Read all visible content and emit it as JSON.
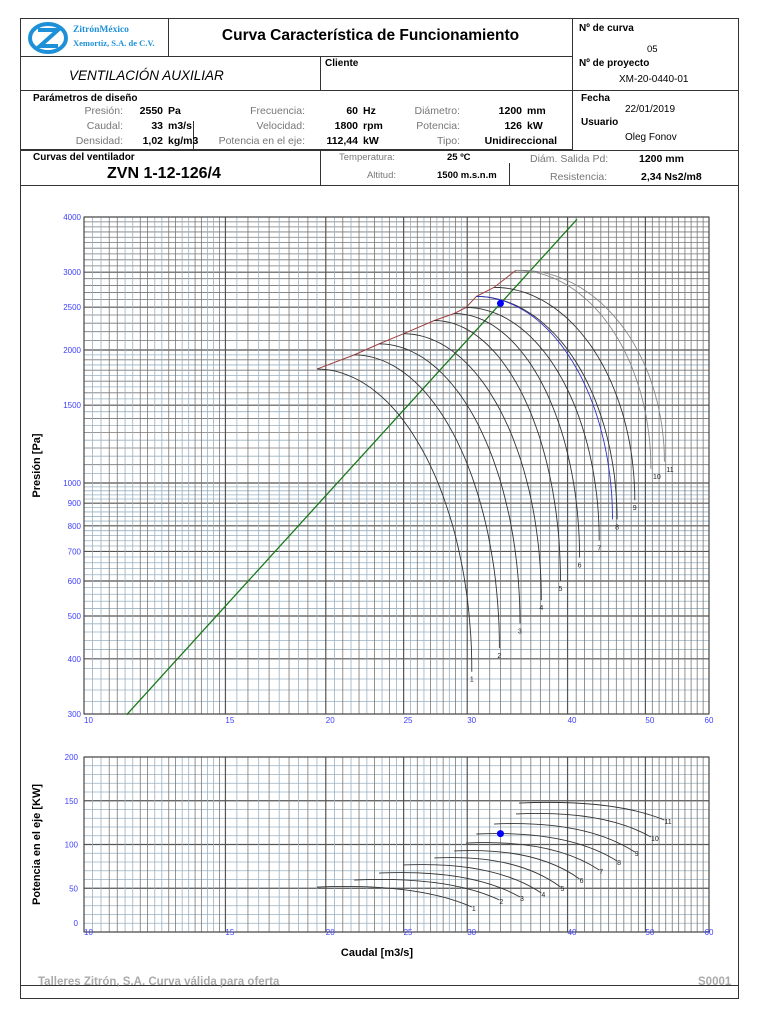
{
  "header": {
    "logo": {
      "line1": "ZitrónMéxico",
      "line2": "Xemortiz, S.A. de C.V.",
      "color": "#1e90d8"
    },
    "title": "Curva Característica de Funcionamiento",
    "application": "VENTILACIÓN AUXILIAR",
    "cliente_label": "Cliente",
    "curve_no_label": "Nº de curva",
    "curve_no": "05",
    "project_label": "Nº de proyecto",
    "project": "XM-20-0440-01",
    "fecha_label": "Fecha",
    "fecha": "22/01/2019",
    "usuario_label": "Usuario",
    "usuario": "Oleg Fonov"
  },
  "params": {
    "title": "Parámetros de diseño",
    "rows": [
      {
        "label": "Presión:",
        "value": "2550",
        "unit": "Pa"
      },
      {
        "label": "Caudal:",
        "value": "33",
        "unit": "m3/s"
      },
      {
        "label": "Densidad:",
        "value": "1,02",
        "unit": "kg/m3"
      },
      {
        "label": "Frecuencia:",
        "value": "60",
        "unit": "Hz"
      },
      {
        "label": "Velocidad:",
        "value": "1800",
        "unit": "rpm"
      },
      {
        "label": "Potencia en el eje:",
        "value": "112,44",
        "unit": "kW"
      },
      {
        "label": "Diámetro:",
        "value": "1200",
        "unit": "mm"
      },
      {
        "label": "Potencia:",
        "value": "126",
        "unit": "kW"
      },
      {
        "label": "Tipo:",
        "value": "Unidireccional",
        "unit": ""
      }
    ]
  },
  "fan": {
    "section_label": "Curvas del ventilador",
    "model": "ZVN 1-12-126/4",
    "temperatura_label": "Temperatura:",
    "temperatura": "25 ºC",
    "altitud_label": "Altitud:",
    "altitud": "1500 m.s.n.m",
    "salida_label": "Diám. Salida Pd:",
    "salida": "1200  mm",
    "resistencia_label": "Resistencia:",
    "resistencia": "2,34  Ns2/m8"
  },
  "footer": {
    "left": "Talleres Zitrón, S.A. Curva válida para oferta",
    "right": "S0001"
  },
  "chart_data": [
    {
      "type": "line",
      "xlabel": "",
      "ylabel": "Presión  [Pa]",
      "x_scale": "log",
      "y_scale": "log",
      "xlim": [
        10,
        60
      ],
      "ylim": [
        300,
        4000
      ],
      "xticks": [
        10,
        15,
        20,
        25,
        30,
        40,
        50,
        60
      ],
      "yticks": [
        300,
        400,
        500,
        600,
        700,
        800,
        900,
        1000,
        1500,
        2000,
        2500,
        3000,
        4000
      ],
      "grid": true,
      "tick_color": "#4040ff",
      "series": [
        {
          "name": "1",
          "start": [
            19.5,
            1811
          ],
          "end": [
            30.4,
            374
          ]
        },
        {
          "name": "2",
          "start": [
            21.7,
            1950
          ],
          "end": [
            32.9,
            423
          ]
        },
        {
          "name": "3",
          "start": [
            23.3,
            2065
          ],
          "end": [
            34.9,
            481
          ]
        },
        {
          "name": "4",
          "start": [
            25.0,
            2177
          ],
          "end": [
            37.1,
            543
          ]
        },
        {
          "name": "5",
          "start": [
            27.3,
            2332
          ],
          "end": [
            39.2,
            600
          ]
        },
        {
          "name": "6",
          "start": [
            28.9,
            2419
          ],
          "end": [
            41.4,
            678
          ]
        },
        {
          "name": "7",
          "start": [
            29.9,
            2496
          ],
          "end": [
            43.8,
            741
          ]
        },
        {
          "name": "8",
          "start": [
            30.8,
            2644
          ],
          "end": [
            46.1,
            827
          ]
        },
        {
          "name": "9",
          "start": [
            32.4,
            2772
          ],
          "end": [
            48.5,
            914
          ]
        },
        {
          "name": "10",
          "start": [
            34.5,
            3030
          ],
          "end": [
            50.8,
            1076
          ]
        },
        {
          "name": "11",
          "start": [
            35.0,
            3030
          ],
          "end": [
            52.8,
            1117
          ]
        }
      ],
      "operating_curve": {
        "start": [
          30.8,
          2644
        ],
        "end": [
          45.5,
          827
        ],
        "color": "#3030c0"
      },
      "system_curve": {
        "resistance": 2.34,
        "x_range": [
          11.3,
          41.1
        ],
        "color": "#1a7a1a"
      },
      "surge_line_color": "#a04040",
      "operating_point": {
        "x": 33,
        "y": 2550,
        "color": "#0000ff"
      }
    },
    {
      "type": "line",
      "xlabel": "Caudal [m3/s]",
      "ylabel": "Potencia en el eje [KW]",
      "x_scale": "log",
      "y_scale": "linear",
      "xlim": [
        10,
        60
      ],
      "ylim": [
        0,
        200
      ],
      "xticks": [
        10,
        15,
        20,
        25,
        30,
        40,
        50,
        60
      ],
      "yticks": [
        0,
        50,
        100,
        150,
        200
      ],
      "grid": true,
      "series": [
        {
          "name": "1",
          "start": [
            19.5,
            51.4
          ],
          "end": [
            30.4,
            28.6
          ]
        },
        {
          "name": "2",
          "start": [
            21.7,
            59.4
          ],
          "end": [
            32.9,
            36.6
          ]
        },
        {
          "name": "3",
          "start": [
            23.3,
            67.4
          ],
          "end": [
            34.9,
            40.0
          ]
        },
        {
          "name": "4",
          "start": [
            25.0,
            76.6
          ],
          "end": [
            37.1,
            44.6
          ]
        },
        {
          "name": "5",
          "start": [
            27.3,
            84.6
          ],
          "end": [
            39.2,
            51.4
          ]
        },
        {
          "name": "6",
          "start": [
            28.9,
            92.6
          ],
          "end": [
            41.4,
            60.6
          ]
        },
        {
          "name": "7",
          "start": [
            29.9,
            101.7
          ],
          "end": [
            43.8,
            70.9
          ]
        },
        {
          "name": "8",
          "start": [
            30.8,
            112.0
          ],
          "end": [
            46.1,
            81.1
          ]
        },
        {
          "name": "9",
          "start": [
            32.4,
            123.4
          ],
          "end": [
            48.5,
            91.4
          ]
        },
        {
          "name": "10",
          "start": [
            34.5,
            134.9
          ],
          "end": [
            50.8,
            108.6
          ]
        },
        {
          "name": "11",
          "start": [
            34.8,
            147.4
          ],
          "end": [
            52.8,
            128.0
          ]
        }
      ],
      "operating_point": {
        "x": 33,
        "y": 112.44,
        "color": "#0000ff"
      }
    }
  ]
}
